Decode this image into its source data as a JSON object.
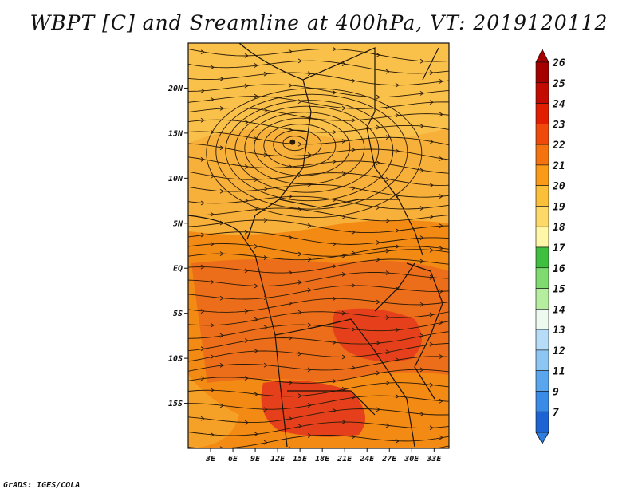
{
  "title": "WBPT [C] and Sreamline at 400hPa, VT: 2019120112",
  "footer": "GrADS: IGES/COLA",
  "map": {
    "lon_range": [
      0,
      35
    ],
    "lat_range": [
      -20,
      25
    ],
    "lat_ticks": [
      {
        "value": 20,
        "label": "20N"
      },
      {
        "value": 15,
        "label": "15N"
      },
      {
        "value": 10,
        "label": "10N"
      },
      {
        "value": 5,
        "label": "5N"
      },
      {
        "value": 0,
        "label": "EQ"
      },
      {
        "value": -5,
        "label": "5S"
      },
      {
        "value": -10,
        "label": "10S"
      },
      {
        "value": -15,
        "label": "15S"
      }
    ],
    "lon_ticks": [
      {
        "value": 3,
        "label": "3E"
      },
      {
        "value": 6,
        "label": "6E"
      },
      {
        "value": 9,
        "label": "9E"
      },
      {
        "value": 12,
        "label": "12E"
      },
      {
        "value": 15,
        "label": "15E"
      },
      {
        "value": 18,
        "label": "18E"
      },
      {
        "value": 21,
        "label": "21E"
      },
      {
        "value": 24,
        "label": "24E"
      },
      {
        "value": 27,
        "label": "27E"
      },
      {
        "value": 30,
        "label": "30E"
      },
      {
        "value": 33,
        "label": "33E"
      }
    ],
    "vortex_center": {
      "lon": 14,
      "lat": 14
    }
  },
  "colorbar": {
    "levels": [
      {
        "label": "26",
        "color": "#a50000"
      },
      {
        "label": "25",
        "color": "#c30a00"
      },
      {
        "label": "24",
        "color": "#e11e00"
      },
      {
        "label": "23",
        "color": "#ef4a0a"
      },
      {
        "label": "22",
        "color": "#f5730f"
      },
      {
        "label": "21",
        "color": "#f99b18"
      },
      {
        "label": "20",
        "color": "#fbbf39"
      },
      {
        "label": "19",
        "color": "#fdd96a"
      },
      {
        "label": "18",
        "color": "#fff6a8"
      },
      {
        "label": "17",
        "color": "#3fbf3f"
      },
      {
        "label": "16",
        "color": "#7fda70"
      },
      {
        "label": "15",
        "color": "#b5ee9f"
      },
      {
        "label": "14",
        "color": "#ecfaef"
      },
      {
        "label": "13",
        "color": "#b6dcf7"
      },
      {
        "label": "12",
        "color": "#8ec6f3"
      },
      {
        "label": "11",
        "color": "#5aa6ee"
      },
      {
        "label": "9",
        "color": "#3a8be6"
      },
      {
        "label": "7",
        "color": "#1c64d3"
      }
    ],
    "top_color": "#a50000",
    "bottom_color": "#2f7ee0"
  },
  "colors": {
    "north_field": "#f7b03a",
    "mid_field": "#f28a14",
    "south_field": "#e8601a",
    "hot_core": "#e5401b",
    "streamline": "#2a1a08"
  }
}
